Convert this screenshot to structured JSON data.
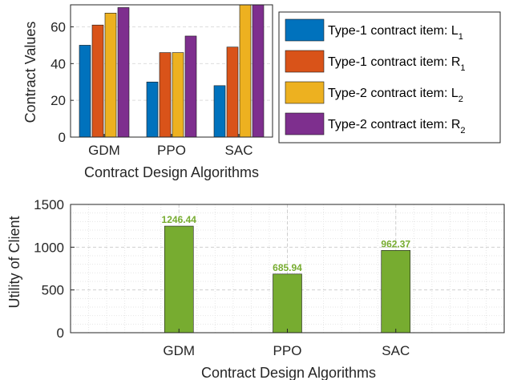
{
  "chart_data": [
    {
      "type": "bar",
      "categories": [
        "GDM",
        "PPO",
        "SAC"
      ],
      "series": [
        {
          "name": "Type-1 contract item: L",
          "sub": "1",
          "values": [
            50,
            30,
            28
          ],
          "color": "#0072BD"
        },
        {
          "name": "Type-1 contract item: R",
          "sub": "1",
          "values": [
            61,
            46,
            49
          ],
          "color": "#D95319"
        },
        {
          "name": "Type-2 contract item: L",
          "sub": "2",
          "values": [
            67.5,
            46,
            74
          ],
          "color": "#EDB120"
        },
        {
          "name": "Type-2 contract item: R",
          "sub": "2",
          "values": [
            70.5,
            55,
            74
          ],
          "color": "#7E2F8E"
        }
      ],
      "xlabel": "Contract Design Algorithms",
      "ylabel": "Contract Values",
      "ylim": [
        0,
        72
      ],
      "yticks": [
        "0",
        "20",
        "40",
        "60"
      ],
      "grid": true,
      "legend": "outside-right"
    },
    {
      "type": "bar",
      "categories": [
        "GDM",
        "PPO",
        "SAC"
      ],
      "series": [
        {
          "values": [
            1246.44,
            685.94,
            962.37
          ],
          "color": "#77AC30"
        }
      ],
      "data_labels": [
        "1246.44",
        "685.94",
        "962.37"
      ],
      "xlabel": "Contract Design Algorithms",
      "ylabel": "Utility of Client",
      "ylim": [
        0,
        1500
      ],
      "yticks": [
        "0",
        "500",
        "1000",
        "1500"
      ],
      "grid": true,
      "minor_grid": true
    }
  ]
}
